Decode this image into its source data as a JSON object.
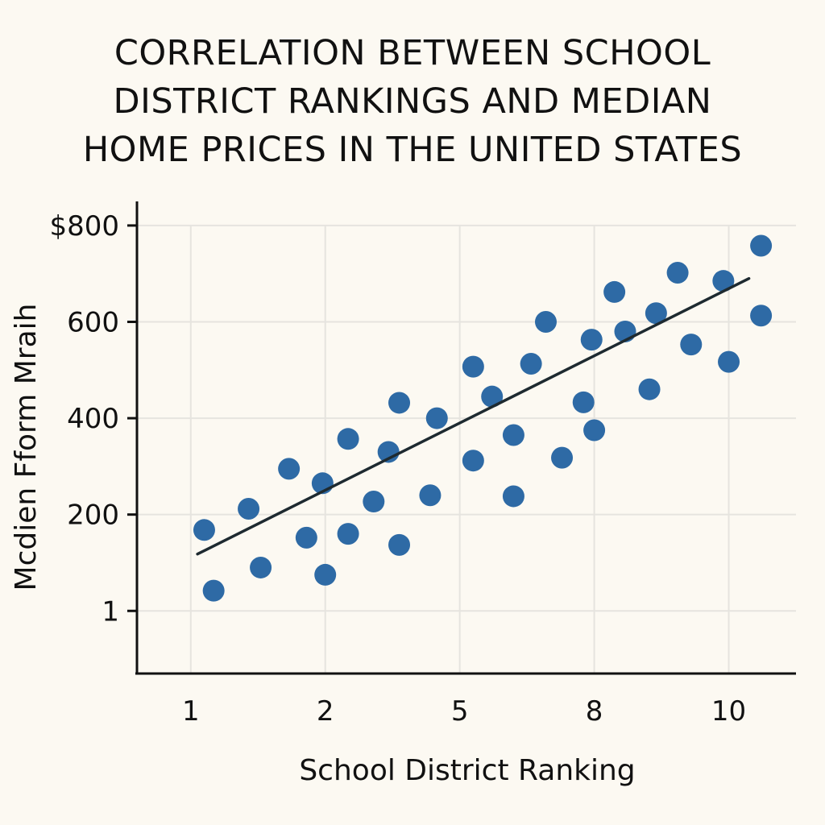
{
  "chart_data": {
    "type": "scatter",
    "title_lines": [
      "CORRELATION BETWEEN SCHOOL",
      "DISTRICT RANKINGS AND MEDIAN",
      "HOME PRICES IN THE UNITED STATES"
    ],
    "xlabel": "School District Ranking",
    "ylabel": "Mcdien Fform Mraih",
    "x_ticks": [
      {
        "value": 1,
        "label": "1"
      },
      {
        "value": 2,
        "label": "2"
      },
      {
        "value": 3,
        "label": "5"
      },
      {
        "value": 4,
        "label": "8"
      },
      {
        "value": 5,
        "label": "10"
      }
    ],
    "y_ticks": [
      {
        "value": 0,
        "label": "1"
      },
      {
        "value": 200,
        "label": "200"
      },
      {
        "value": 400,
        "label": "400"
      },
      {
        "value": 600,
        "label": "600"
      },
      {
        "value": 800,
        "label": "$800"
      }
    ],
    "xlim": [
      0.6,
      5.5
    ],
    "ylim": [
      -130,
      850
    ],
    "grid": true,
    "point_color": "#2e6aa5",
    "trendline_color": "#1e2a30",
    "trendline": {
      "x": [
        1.05,
        5.15
      ],
      "y": [
        118,
        690
      ]
    },
    "points": [
      {
        "x": 1.1,
        "y": 168
      },
      {
        "x": 1.17,
        "y": 42
      },
      {
        "x": 1.43,
        "y": 212
      },
      {
        "x": 1.52,
        "y": 90
      },
      {
        "x": 1.73,
        "y": 295
      },
      {
        "x": 1.86,
        "y": 152
      },
      {
        "x": 1.98,
        "y": 265
      },
      {
        "x": 2.0,
        "y": 75
      },
      {
        "x": 2.17,
        "y": 357
      },
      {
        "x": 2.17,
        "y": 160
      },
      {
        "x": 2.36,
        "y": 227
      },
      {
        "x": 2.47,
        "y": 330
      },
      {
        "x": 2.55,
        "y": 432
      },
      {
        "x": 2.55,
        "y": 137
      },
      {
        "x": 2.78,
        "y": 240
      },
      {
        "x": 2.83,
        "y": 400
      },
      {
        "x": 3.1,
        "y": 507
      },
      {
        "x": 3.1,
        "y": 312
      },
      {
        "x": 3.24,
        "y": 445
      },
      {
        "x": 3.4,
        "y": 365
      },
      {
        "x": 3.4,
        "y": 238
      },
      {
        "x": 3.53,
        "y": 513
      },
      {
        "x": 3.64,
        "y": 600
      },
      {
        "x": 3.76,
        "y": 318
      },
      {
        "x": 3.92,
        "y": 433
      },
      {
        "x": 3.98,
        "y": 563
      },
      {
        "x": 4.15,
        "y": 662
      },
      {
        "x": 4.0,
        "y": 375
      },
      {
        "x": 4.23,
        "y": 580
      },
      {
        "x": 4.46,
        "y": 618
      },
      {
        "x": 4.41,
        "y": 460
      },
      {
        "x": 4.62,
        "y": 702
      },
      {
        "x": 4.72,
        "y": 553
      },
      {
        "x": 4.96,
        "y": 685
      },
      {
        "x": 5.0,
        "y": 517
      },
      {
        "x": 5.24,
        "y": 758
      },
      {
        "x": 5.24,
        "y": 613
      }
    ]
  }
}
